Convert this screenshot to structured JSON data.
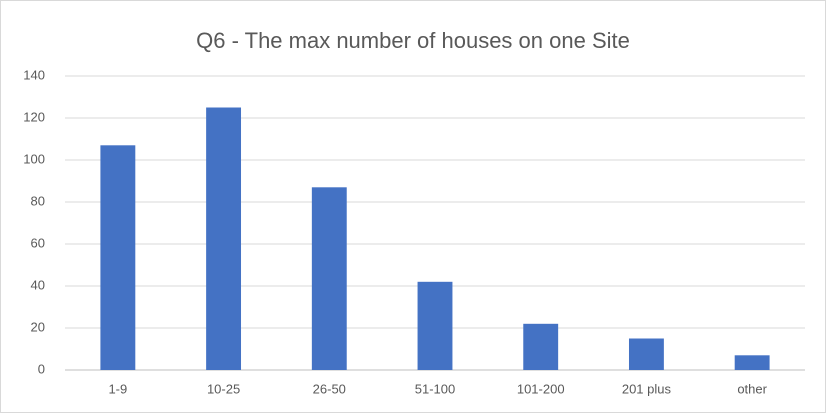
{
  "chart_data": {
    "type": "bar",
    "title": "Q6 - The max number of houses on one Site",
    "categories": [
      "1-9",
      "10-25",
      "26-50",
      "51-100",
      "101-200",
      "201 plus",
      "other"
    ],
    "values": [
      107,
      125,
      87,
      42,
      22,
      15,
      7
    ],
    "color": "#4472c4",
    "ylim": [
      0,
      140
    ],
    "yticks": [
      0,
      20,
      40,
      60,
      80,
      100,
      120,
      140
    ],
    "grid": true
  }
}
